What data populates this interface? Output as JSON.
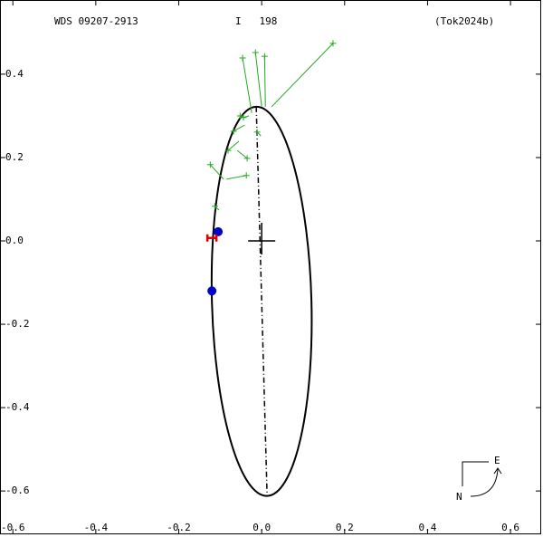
{
  "chart_data": {
    "type": "orbit",
    "title": "WDS 09207-2913",
    "subtitle": "I   198",
    "reference": "(Tok2024b)",
    "xlim": [
      -0.631,
      0.674
    ],
    "ylim": [
      -0.704,
      0.578
    ],
    "xticks": [
      -0.6,
      -0.4,
      -0.2,
      {
        "value": 0,
        "label": "0.0"
      },
      0.2,
      0.4,
      0.6
    ],
    "yticks": [
      0.4,
      0.2,
      {
        "value": 0,
        "label": "0.0"
      },
      -0.2,
      -0.4,
      -0.6
    ],
    "orbit": {
      "color": "#000000",
      "center": [
        0,
        -0.145
      ],
      "semi_axes": [
        0.12,
        0.467
      ],
      "angle": -1.6
    },
    "observations": {
      "color": "#22aa22",
      "x": [
        0.172,
        -0.015,
        0.007,
        -0.046,
        -0.052,
        -0.044,
        -0.068,
        -0.011,
        -0.035,
        -0.081,
        -0.037,
        -0.124,
        -0.113
      ],
      "y": [
        0.474,
        0.452,
        0.443,
        0.439,
        0.3,
        0.296,
        0.263,
        0.261,
        0.198,
        0.217,
        0.157,
        0.183,
        0.083
      ],
      "x_end": [
        0.024,
        0.0,
        0.009,
        -0.024,
        -0.041,
        -0.031,
        -0.041,
        -0.002,
        -0.059,
        -0.055,
        -0.085,
        -0.092,
        -0.103
      ],
      "y_end": [
        0.322,
        0.322,
        0.322,
        0.307,
        0.296,
        0.3,
        0.278,
        0.252,
        0.217,
        0.239,
        0.148,
        0.148,
        0.074
      ]
    },
    "recent": {
      "color": "#0000cc",
      "x": [
        -0.105,
        -0.12
      ],
      "y": [
        0.022,
        -0.12
      ]
    },
    "speckle": {
      "color": "#dd0000",
      "x": [
        -0.12
      ],
      "y": [
        0.007
      ]
    },
    "compass": {
      "east": "E",
      "north": "N"
    }
  }
}
